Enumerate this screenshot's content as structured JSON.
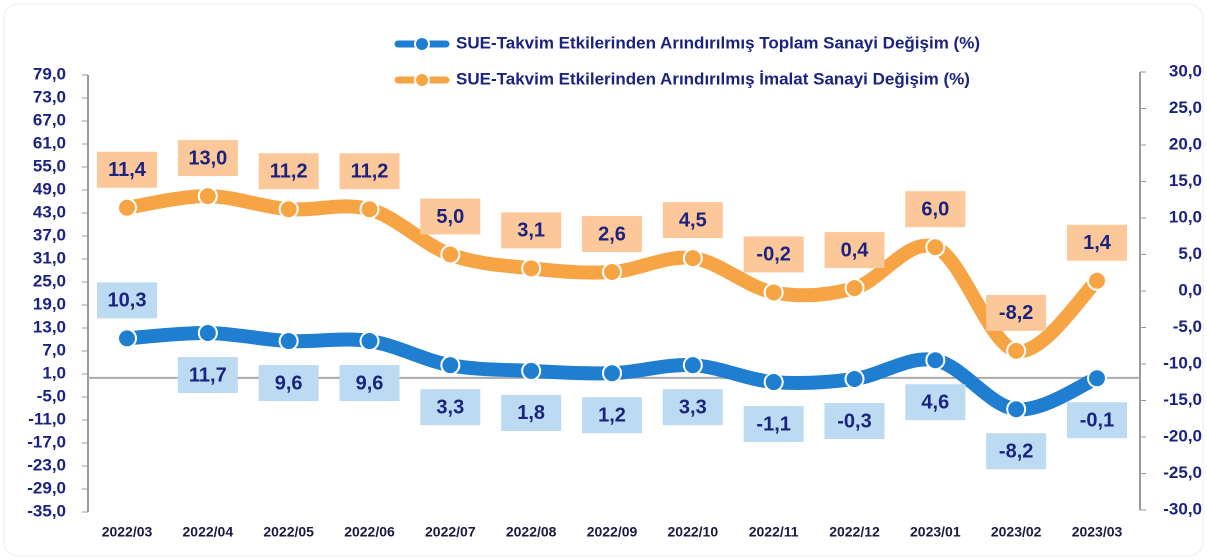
{
  "chart_data": {
    "type": "line",
    "categories": [
      "2022/03",
      "2022/04",
      "2022/05",
      "2022/06",
      "2022/07",
      "2022/08",
      "2022/09",
      "2022/10",
      "2022/11",
      "2022/12",
      "2023/01",
      "2023/02",
      "2023/03"
    ],
    "series": [
      {
        "name": "SUE-Takvim Etkilerinden Arındırılmış Toplam Sanayi Değişim (%)",
        "color": "#1f7ed0",
        "values": [
          10.3,
          11.7,
          9.6,
          9.6,
          3.3,
          1.8,
          1.2,
          3.3,
          -1.1,
          -0.3,
          4.6,
          -8.2,
          -0.1
        ],
        "value_labels": [
          "10,3",
          "11,7",
          "9,6",
          "9,6",
          "3,3",
          "1,8",
          "1,2",
          "3,3",
          "-1,1",
          "-0,3",
          "4,6",
          "-8,2",
          "-0,1"
        ]
      },
      {
        "name": "SUE-Takvim Etkilerinden Arındırılmış İmalat Sanayi Değişim (%)",
        "color": "#f7a445",
        "axis": "y2",
        "values": [
          11.4,
          13.0,
          11.2,
          11.2,
          5.0,
          3.1,
          2.6,
          4.5,
          -0.2,
          0.4,
          6.0,
          -8.2,
          1.4
        ],
        "value_labels": [
          "11,4",
          "13,0",
          "11,2",
          "11,2",
          "5,0",
          "3,1",
          "2,6",
          "4,5",
          "-0,2",
          "0,4",
          "6,0",
          "-8,2",
          "1,4"
        ]
      }
    ],
    "ylim": [
      -35,
      79
    ],
    "yticks": [
      {
        "value": 79,
        "label": "79,0"
      },
      {
        "value": 73,
        "label": "73,0"
      },
      {
        "value": 67,
        "label": "67,0"
      },
      {
        "value": 61,
        "label": "61,0"
      },
      {
        "value": 55,
        "label": "55,0"
      },
      {
        "value": 49,
        "label": "49,0"
      },
      {
        "value": 43,
        "label": "43,0"
      },
      {
        "value": 37,
        "label": "37,0"
      },
      {
        "value": 31,
        "label": "31,0"
      },
      {
        "value": 25,
        "label": "25,0"
      },
      {
        "value": 19,
        "label": "19,0"
      },
      {
        "value": 13,
        "label": "13,0"
      },
      {
        "value": 7,
        "label": "7,0"
      },
      {
        "value": 1,
        "label": "1,0"
      },
      {
        "value": -5,
        "label": "-5,0"
      },
      {
        "value": -11,
        "label": "-11,0"
      },
      {
        "value": -17,
        "label": "-17,0"
      },
      {
        "value": -23,
        "label": "-23,0"
      },
      {
        "value": -29,
        "label": "-29,0"
      },
      {
        "value": -35,
        "label": "-35,0"
      }
    ],
    "y2lim": [
      -30,
      30
    ],
    "y2ticks": [
      {
        "value": 30,
        "label": "30,0"
      },
      {
        "value": 25,
        "label": "25,0"
      },
      {
        "value": 20,
        "label": "20,0"
      },
      {
        "value": 15,
        "label": "15,0"
      },
      {
        "value": 10,
        "label": "10,0"
      },
      {
        "value": 5,
        "label": "5,0"
      },
      {
        "value": 0,
        "label": "0,0"
      },
      {
        "value": -5,
        "label": "-5,0"
      },
      {
        "value": -10,
        "label": "-10,0"
      },
      {
        "value": -15,
        "label": "-15,0"
      },
      {
        "value": -20,
        "label": "-20,0"
      },
      {
        "value": -25,
        "label": "-25,0"
      },
      {
        "value": -30,
        "label": "-30,0"
      }
    ],
    "legend": "top-right"
  }
}
